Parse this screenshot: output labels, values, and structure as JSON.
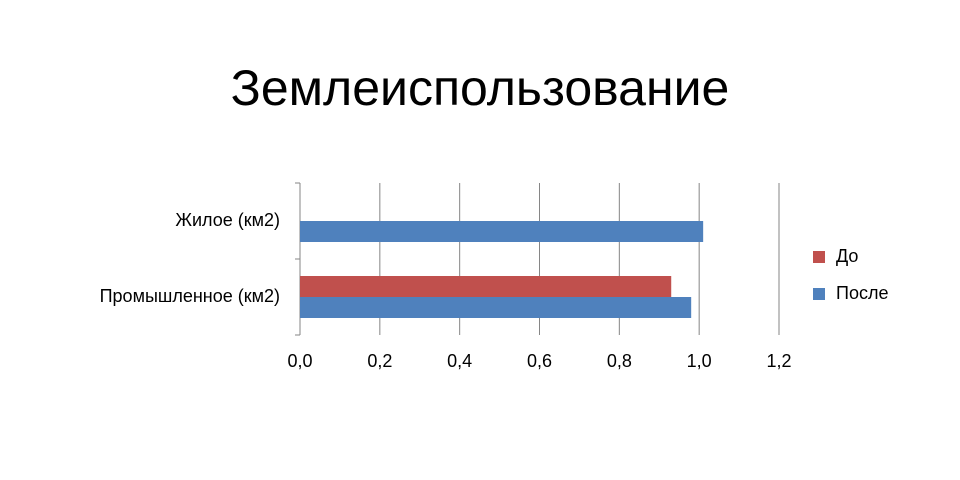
{
  "chart_data": {
    "type": "bar",
    "orientation": "horizontal",
    "title": "Землеиспользование",
    "categories": [
      "Жилое (км2)",
      "Промышленное (км2)"
    ],
    "series": [
      {
        "name": "До",
        "color": "#c0504d",
        "values": [
          null,
          0.93
        ]
      },
      {
        "name": "После",
        "color": "#4f81bd",
        "values": [
          1.01,
          0.98
        ]
      }
    ],
    "xlim": [
      0,
      1.2
    ],
    "xticks": [
      {
        "value": 0,
        "label": "0,0"
      },
      {
        "value": 0.2,
        "label": "0,2"
      },
      {
        "value": 0.4,
        "label": "0,4"
      },
      {
        "value": 0.6,
        "label": "0,6"
      },
      {
        "value": 0.8,
        "label": "0,8"
      },
      {
        "value": 1,
        "label": "1,0"
      },
      {
        "value": 1.2,
        "label": "1,2"
      }
    ],
    "grid": true,
    "legend": "right"
  }
}
